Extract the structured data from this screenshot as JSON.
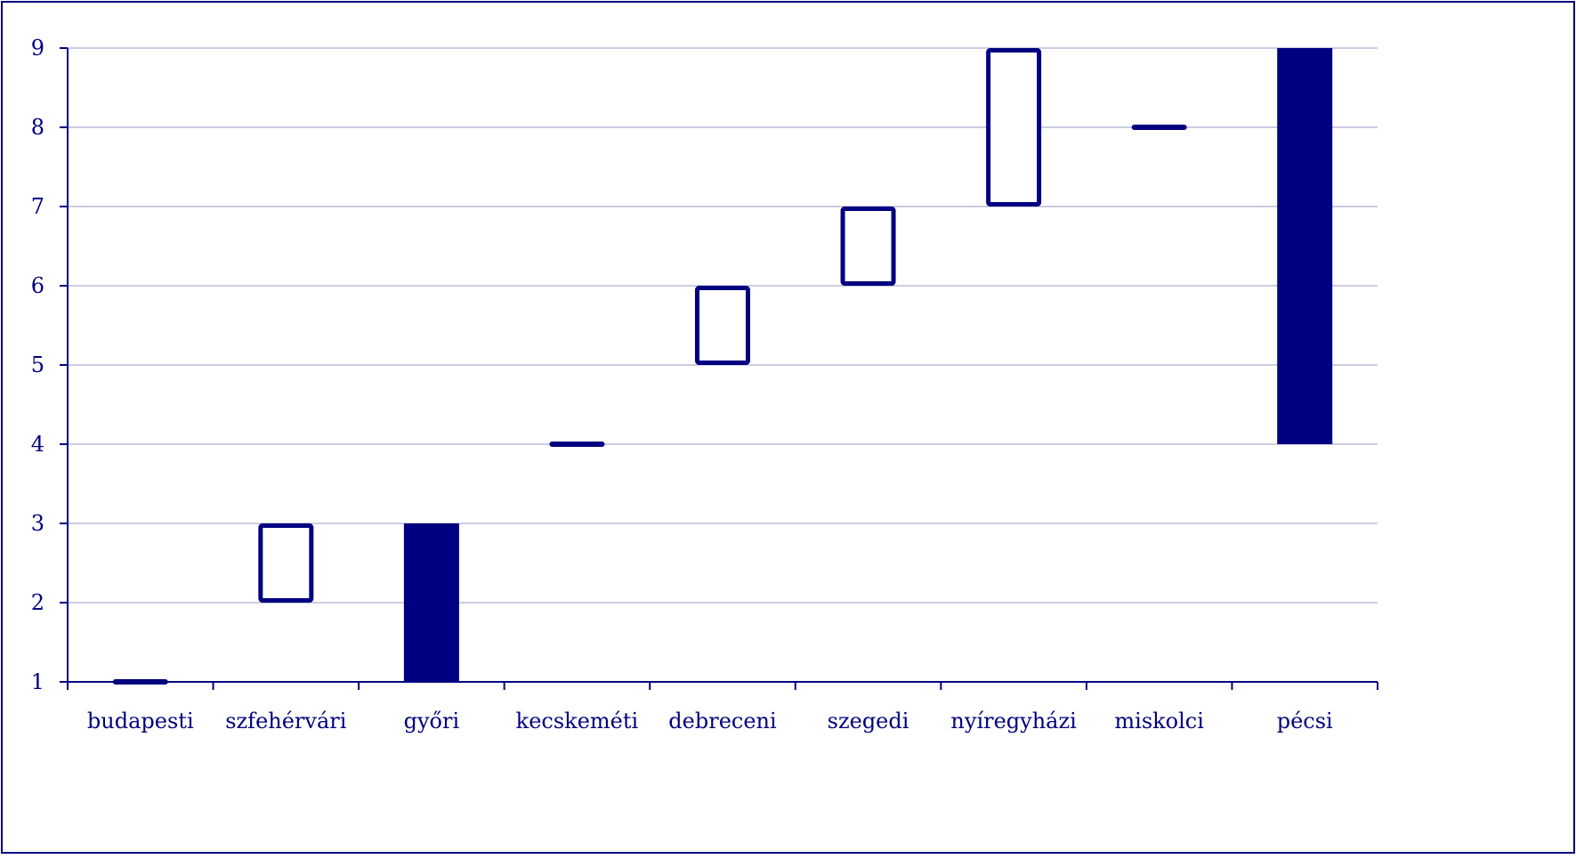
{
  "chart_data": {
    "type": "bar",
    "subtype": "floating-range",
    "title": "",
    "xlabel": "",
    "ylabel": "",
    "ylim": [
      1,
      9
    ],
    "yticks": [
      1,
      2,
      3,
      4,
      5,
      6,
      7,
      8,
      9
    ],
    "grid": true,
    "legend": "none",
    "categories": [
      "budapesti",
      "szfehérvári",
      "győri",
      "kecskeméti",
      "debreceni",
      "szegedi",
      "nyíregyházi",
      "miskolci",
      "pécsi"
    ],
    "series": [
      {
        "low": [
          1,
          2,
          1,
          4,
          5,
          6,
          7,
          8,
          4
        ],
        "high": [
          1,
          3,
          3,
          4,
          6,
          7,
          9,
          8,
          9
        ],
        "filled": [
          true,
          false,
          true,
          true,
          false,
          false,
          false,
          true,
          true
        ]
      }
    ]
  },
  "colors": {
    "ink": "#000080",
    "grid": "#9a9ac8",
    "background": "#ffffff"
  }
}
